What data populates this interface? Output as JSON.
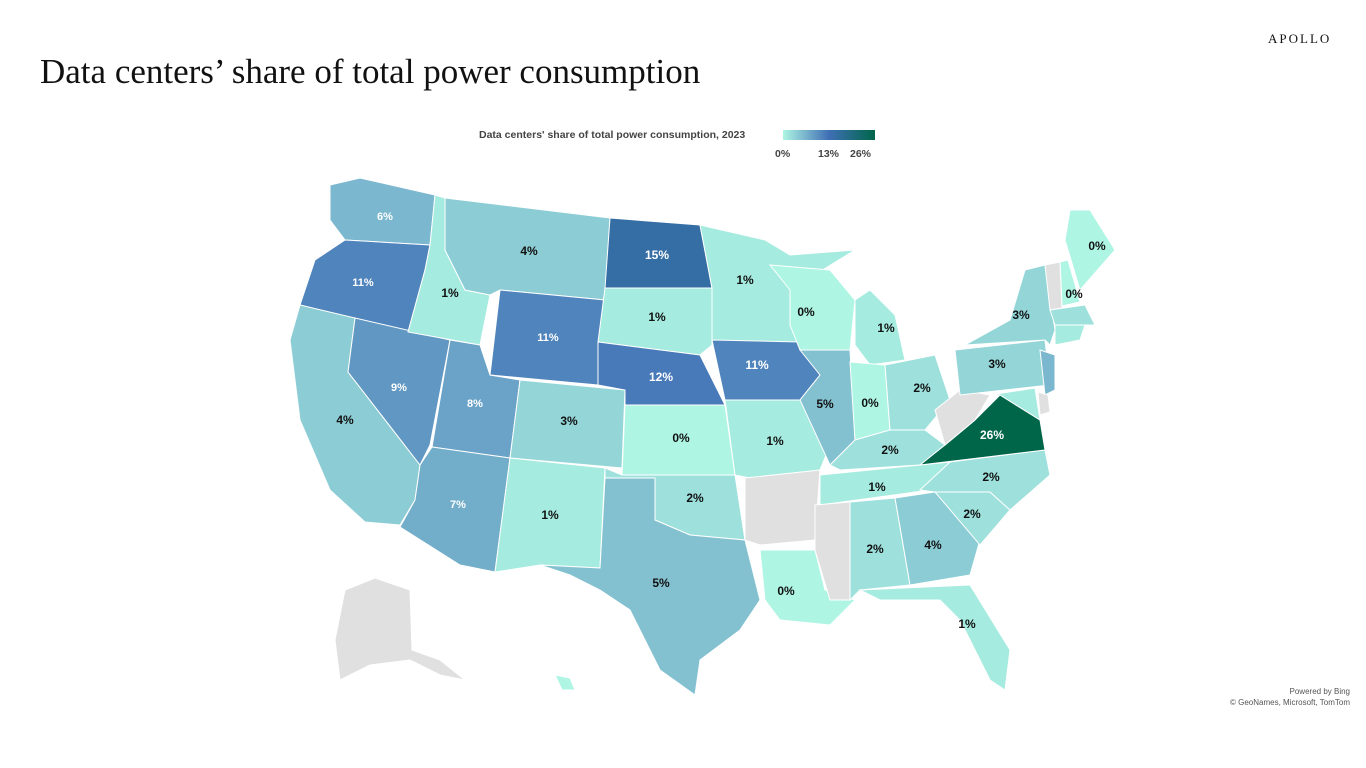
{
  "title": "Data centers’ share of total power consumption",
  "logo": "APOLLO",
  "legend": {
    "title": "Data centers' share of total power consumption, 2023",
    "min_label": "0%",
    "mid_label": "13%",
    "max_label": "26%",
    "min": 0,
    "mid": 13,
    "max": 26,
    "colors": {
      "min": "#aef5e3",
      "mid": "#3f6fb5",
      "max": "#00664a",
      "no_data": "#e0e0e0"
    }
  },
  "attribution": {
    "line1": "Powered by Bing",
    "line2": "© GeoNames, Microsoft, TomTom"
  },
  "states": [
    {
      "code": "WA",
      "value": 6,
      "label": "6%"
    },
    {
      "code": "OR",
      "value": 11,
      "label": "11%"
    },
    {
      "code": "CA",
      "value": 4,
      "label": "4%"
    },
    {
      "code": "NV",
      "value": 9,
      "label": "9%"
    },
    {
      "code": "ID",
      "value": 1,
      "label": "1%"
    },
    {
      "code": "MT",
      "value": 4,
      "label": "4%"
    },
    {
      "code": "WY",
      "value": 11,
      "label": "11%"
    },
    {
      "code": "UT",
      "value": 8,
      "label": "8%"
    },
    {
      "code": "AZ",
      "value": 7,
      "label": "7%"
    },
    {
      "code": "CO",
      "value": 3,
      "label": "3%"
    },
    {
      "code": "NM",
      "value": 1,
      "label": "1%"
    },
    {
      "code": "ND",
      "value": 15,
      "label": "15%"
    },
    {
      "code": "SD",
      "value": 1,
      "label": "1%"
    },
    {
      "code": "NE",
      "value": 12,
      "label": "12%"
    },
    {
      "code": "KS",
      "value": 0,
      "label": "0%"
    },
    {
      "code": "OK",
      "value": 2,
      "label": "2%"
    },
    {
      "code": "TX",
      "value": 5,
      "label": "5%"
    },
    {
      "code": "MN",
      "value": 1,
      "label": "1%"
    },
    {
      "code": "IA",
      "value": 11,
      "label": "11%"
    },
    {
      "code": "MO",
      "value": 1,
      "label": "1%"
    },
    {
      "code": "AR",
      "value": null
    },
    {
      "code": "LA",
      "value": 0,
      "label": "0%"
    },
    {
      "code": "WI",
      "value": 0,
      "label": "0%"
    },
    {
      "code": "IL",
      "value": 5,
      "label": "5%"
    },
    {
      "code": "MI",
      "value": 1,
      "label": "1%"
    },
    {
      "code": "IN",
      "value": 0,
      "label": "0%"
    },
    {
      "code": "OH",
      "value": 2,
      "label": "2%"
    },
    {
      "code": "KY",
      "value": 2,
      "label": "2%"
    },
    {
      "code": "TN",
      "value": 1,
      "label": "1%"
    },
    {
      "code": "MS",
      "value": null
    },
    {
      "code": "AL",
      "value": 2,
      "label": "2%"
    },
    {
      "code": "GA",
      "value": 4,
      "label": "4%"
    },
    {
      "code": "FL",
      "value": 1,
      "label": "1%"
    },
    {
      "code": "SC",
      "value": 2,
      "label": "2%"
    },
    {
      "code": "NC",
      "value": 2,
      "label": "2%"
    },
    {
      "code": "VA",
      "value": 26,
      "label": "26%"
    },
    {
      "code": "WV",
      "value": null
    },
    {
      "code": "PA",
      "value": 3,
      "label": "3%"
    },
    {
      "code": "NY",
      "value": 3,
      "label": "3%"
    },
    {
      "code": "NJ",
      "value": 6
    },
    {
      "code": "MD",
      "value": 1
    },
    {
      "code": "DE",
      "value": null
    },
    {
      "code": "ME",
      "value": 0,
      "label": "0%"
    },
    {
      "code": "NH",
      "value": 0,
      "label": "0%"
    },
    {
      "code": "VT",
      "value": null
    },
    {
      "code": "MA",
      "value": 2
    },
    {
      "code": "CT",
      "value": 1
    },
    {
      "code": "AK",
      "value": null
    },
    {
      "code": "HI",
      "value": 0
    }
  ]
}
